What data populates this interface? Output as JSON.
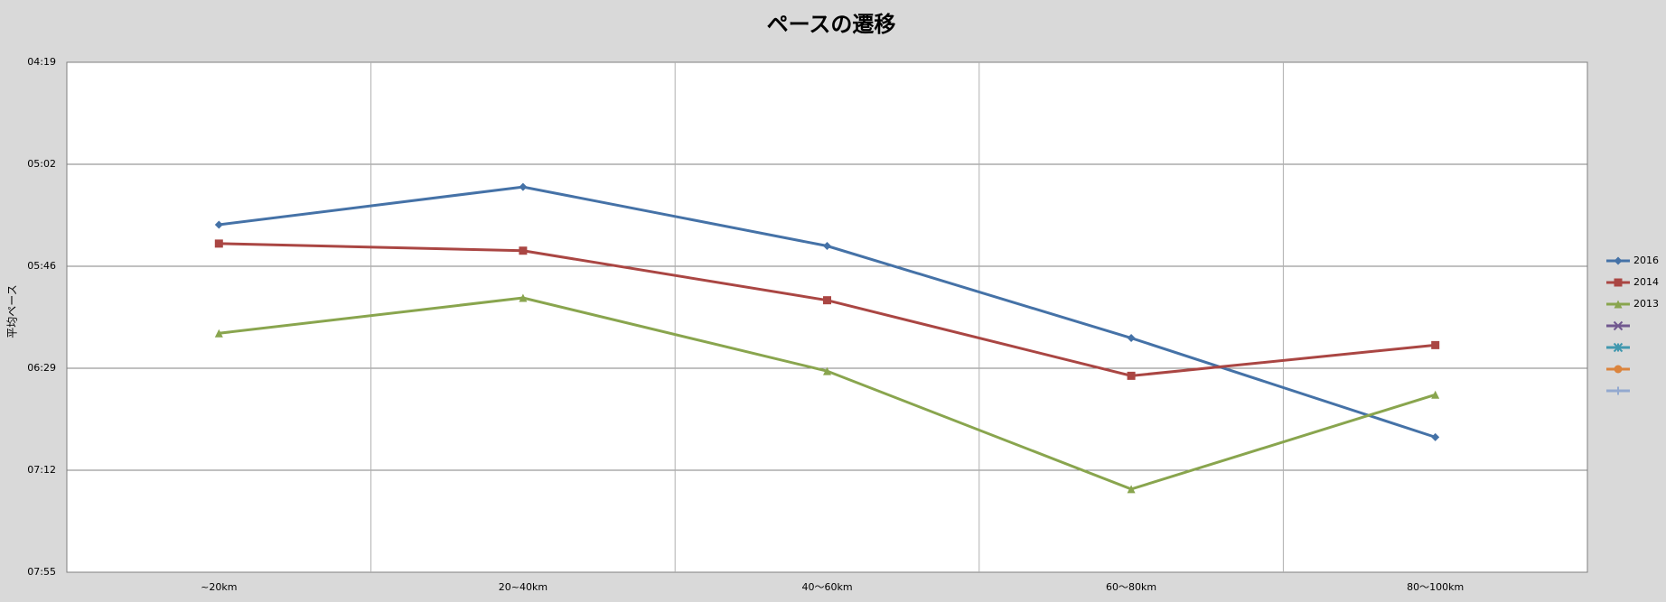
{
  "chart_data": {
    "type": "line",
    "title": "ペースの遷移",
    "y_label": "平均ペース",
    "categories": [
      "~20km",
      "20~40km",
      "40～60km",
      "60～80km",
      "80～100km"
    ],
    "ylim": [
      259.2,
      475.2
    ],
    "y_reversed": true,
    "yticks": [
      {
        "value": 259.2,
        "label": "04:19"
      },
      {
        "value": 302.4,
        "label": "05:02"
      },
      {
        "value": 345.6,
        "label": "05:46"
      },
      {
        "value": 388.8,
        "label": "06:29"
      },
      {
        "value": 432,
        "label": "07:12"
      },
      {
        "value": 475.2,
        "label": "07:55"
      }
    ],
    "grid": true,
    "legend": "right",
    "series": [
      {
        "name": "2016",
        "color": "#4572a7",
        "marker": "diamond",
        "values": [
          328,
          312,
          337,
          376,
          418
        ]
      },
      {
        "name": "2014",
        "color": "#aa4643",
        "marker": "square",
        "values": [
          336,
          339,
          360,
          392,
          379
        ]
      },
      {
        "name": "2013",
        "color": "#89a54e",
        "marker": "triangle",
        "values": [
          374,
          359,
          390,
          440,
          400
        ]
      },
      {
        "name": null,
        "color": "#71588f",
        "marker": "x",
        "values": [
          null,
          null,
          null,
          null,
          null
        ]
      },
      {
        "name": null,
        "color": "#4198af",
        "marker": "star",
        "values": [
          null,
          null,
          null,
          null,
          null
        ]
      },
      {
        "name": null,
        "color": "#db843d",
        "marker": "circle",
        "values": [
          null,
          null,
          null,
          null,
          null
        ]
      },
      {
        "name": null,
        "color": "#93a9cf",
        "marker": "plus",
        "values": [
          null,
          null,
          null,
          null,
          null
        ]
      }
    ]
  }
}
